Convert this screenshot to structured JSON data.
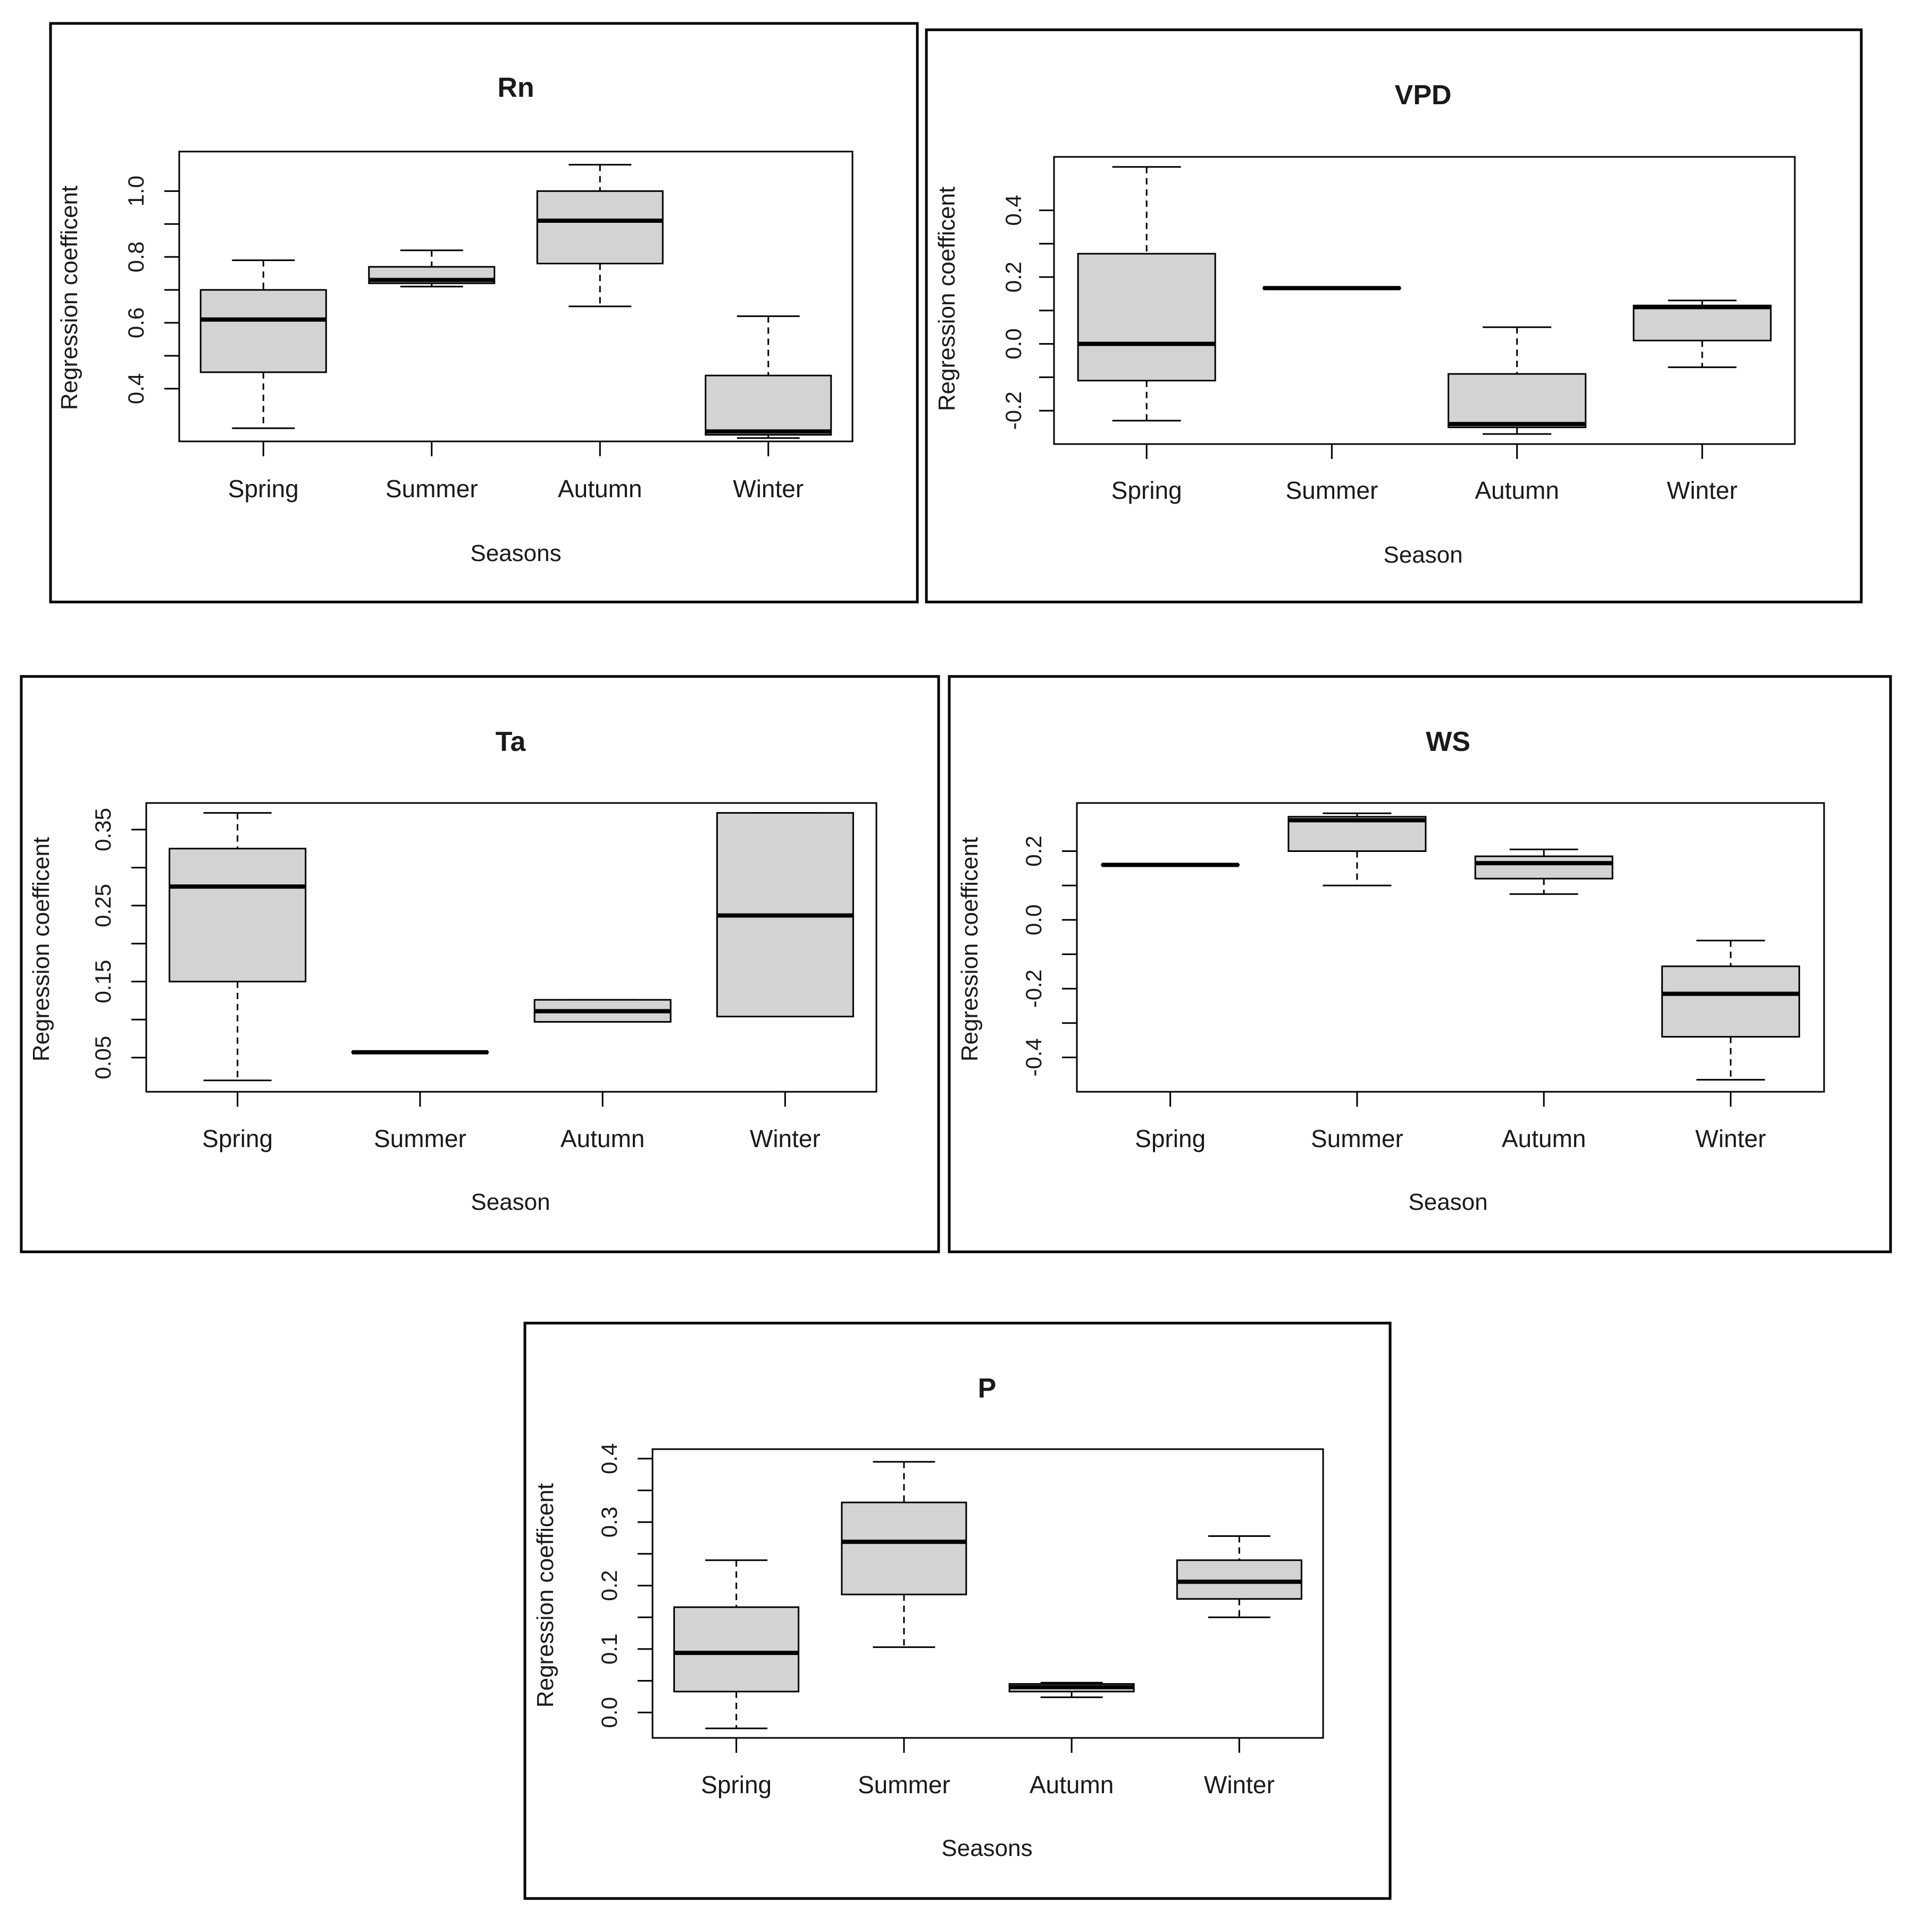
{
  "figure": {
    "box_fill": "#d3d3d3",
    "stroke_color": "#000000",
    "panels": [
      {
        "key": "rn",
        "title": "Rn",
        "xlabel": "Seasons",
        "ylabel": "Regression coefficent",
        "y_ticks": [
          "0.4",
          "0.6",
          "0.8",
          "1.0"
        ]
      },
      {
        "key": "vpd",
        "title": "VPD",
        "xlabel": "Season",
        "ylabel": "Regression coefficent",
        "y_ticks": [
          "-0.2",
          "0.0",
          "0.2",
          "0.4"
        ]
      },
      {
        "key": "ta",
        "title": "Ta",
        "xlabel": "Season",
        "ylabel": "Regression coefficent",
        "y_ticks": [
          "0.05",
          "0.15",
          "0.25",
          "0.35"
        ]
      },
      {
        "key": "ws",
        "title": "WS",
        "xlabel": "Season",
        "ylabel": "Regression coefficent",
        "y_ticks": [
          "-0.4",
          "-0.2",
          "0.0",
          "0.2"
        ]
      },
      {
        "key": "p",
        "title": "P",
        "xlabel": "Seasons",
        "ylabel": "Regression coefficent",
        "y_ticks": [
          "0.0",
          "0.1",
          "0.2",
          "0.3",
          "0.4"
        ]
      }
    ]
  },
  "chart_data": [
    {
      "type": "boxplot",
      "title": "Rn",
      "xlabel": "Seasons",
      "ylabel": "Regression coefficent",
      "categories": [
        "Spring",
        "Summer",
        "Autumn",
        "Winter"
      ],
      "ylim": [
        0.24,
        1.12
      ],
      "y_ticks": [
        0.4,
        0.6,
        0.8,
        1.0
      ],
      "minor_ticks": [
        0.5,
        0.7,
        0.9
      ],
      "boxes": [
        {
          "whisker_low": 0.28,
          "q1": 0.45,
          "median": 0.61,
          "q3": 0.7,
          "whisker_high": 0.79
        },
        {
          "whisker_low": 0.71,
          "q1": 0.72,
          "median": 0.73,
          "q3": 0.77,
          "whisker_high": 0.82
        },
        {
          "whisker_low": 0.65,
          "q1": 0.78,
          "median": 0.91,
          "q3": 1.0,
          "whisker_high": 1.08
        },
        {
          "whisker_low": 0.25,
          "q1": 0.26,
          "median": 0.27,
          "q3": 0.44,
          "whisker_high": 0.62
        }
      ]
    },
    {
      "type": "boxplot",
      "title": "VPD",
      "xlabel": "Season",
      "ylabel": "Regression coefficent",
      "categories": [
        "Spring",
        "Summer",
        "Autumn",
        "Winter"
      ],
      "ylim": [
        -0.3,
        0.56
      ],
      "y_ticks": [
        -0.2,
        0.0,
        0.2,
        0.4
      ],
      "minor_ticks": [
        -0.1,
        0.1,
        0.3
      ],
      "boxes": [
        {
          "whisker_low": -0.23,
          "q1": -0.11,
          "median": 0.0,
          "q3": 0.27,
          "whisker_high": 0.53
        },
        {
          "whisker_low": 0.167,
          "q1": 0.167,
          "median": 0.167,
          "q3": 0.167,
          "whisker_high": 0.167
        },
        {
          "whisker_low": -0.27,
          "q1": -0.25,
          "median": -0.24,
          "q3": -0.09,
          "whisker_high": 0.05
        },
        {
          "whisker_low": -0.07,
          "q1": 0.01,
          "median": 0.11,
          "q3": 0.115,
          "whisker_high": 0.13
        }
      ]
    },
    {
      "type": "boxplot",
      "title": "Ta",
      "xlabel": "Season",
      "ylabel": "Regression coefficent",
      "categories": [
        "Spring",
        "Summer",
        "Autumn",
        "Winter"
      ],
      "ylim": [
        0.005,
        0.385
      ],
      "y_ticks": [
        0.05,
        0.15,
        0.25,
        0.35
      ],
      "minor_ticks": [
        0.1,
        0.2,
        0.3
      ],
      "boxes": [
        {
          "whisker_low": 0.02,
          "q1": 0.15,
          "median": 0.275,
          "q3": 0.325,
          "whisker_high": 0.372
        },
        {
          "whisker_low": 0.057,
          "q1": 0.057,
          "median": 0.057,
          "q3": 0.057,
          "whisker_high": 0.057
        },
        {
          "whisker_low": 0.097,
          "q1": 0.097,
          "median": 0.111,
          "q3": 0.126,
          "whisker_high": 0.126
        },
        {
          "whisker_low": 0.104,
          "q1": 0.104,
          "median": 0.237,
          "q3": 0.372,
          "whisker_high": 0.372
        }
      ]
    },
    {
      "type": "boxplot",
      "title": "WS",
      "xlabel": "Season",
      "ylabel": "Regression coefficent",
      "categories": [
        "Spring",
        "Summer",
        "Autumn",
        "Winter"
      ],
      "ylim": [
        -0.5,
        0.34
      ],
      "y_ticks": [
        -0.4,
        -0.2,
        0.0,
        0.2
      ],
      "minor_ticks": [
        -0.3,
        -0.1,
        0.1
      ],
      "boxes": [
        {
          "whisker_low": 0.16,
          "q1": 0.16,
          "median": 0.16,
          "q3": 0.16,
          "whisker_high": 0.16
        },
        {
          "whisker_low": 0.1,
          "q1": 0.2,
          "median": 0.29,
          "q3": 0.3,
          "whisker_high": 0.31
        },
        {
          "whisker_low": 0.075,
          "q1": 0.12,
          "median": 0.165,
          "q3": 0.185,
          "whisker_high": 0.205
        },
        {
          "whisker_low": -0.465,
          "q1": -0.34,
          "median": -0.215,
          "q3": -0.135,
          "whisker_high": -0.06
        }
      ]
    },
    {
      "type": "boxplot",
      "title": "P",
      "xlabel": "Seasons",
      "ylabel": "Regression coefficent",
      "categories": [
        "Spring",
        "Summer",
        "Autumn",
        "Winter"
      ],
      "ylim": [
        -0.04,
        0.415
      ],
      "y_ticks": [
        0.0,
        0.1,
        0.2,
        0.3,
        0.4
      ],
      "minor_ticks": [
        0.05,
        0.15,
        0.25,
        0.35
      ],
      "boxes": [
        {
          "whisker_low": -0.025,
          "q1": 0.033,
          "median": 0.094,
          "q3": 0.166,
          "whisker_high": 0.24
        },
        {
          "whisker_low": 0.103,
          "q1": 0.186,
          "median": 0.269,
          "q3": 0.331,
          "whisker_high": 0.395
        },
        {
          "whisker_low": 0.024,
          "q1": 0.033,
          "median": 0.04,
          "q3": 0.045,
          "whisker_high": 0.047
        },
        {
          "whisker_low": 0.15,
          "q1": 0.179,
          "median": 0.206,
          "q3": 0.24,
          "whisker_high": 0.278
        }
      ]
    }
  ]
}
